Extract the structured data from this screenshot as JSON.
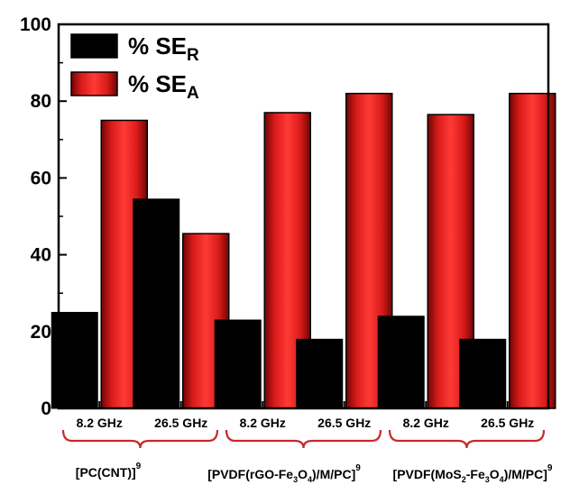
{
  "chart_data": {
    "type": "bar",
    "categories": [
      "8.2 GHz",
      "26.5 GHz",
      "8.2 GHz",
      "26.5 GHz",
      "8.2 GHz",
      "26.5 GHz"
    ],
    "groups": [
      {
        "label": {
          "main": "[PC(CNT)]",
          "sup": "9"
        },
        "frequencies": [
          "8.2 GHz",
          "26.5 GHz"
        ]
      },
      {
        "label": {
          "parts": [
            "[PVDF(rGO-Fe",
            "3",
            "O",
            "4",
            ")/M/PC]"
          ],
          "sup": "9"
        },
        "frequencies": [
          "8.2 GHz",
          "26.5 GHz"
        ]
      },
      {
        "label": {
          "parts": [
            "[PVDF(MoS",
            "2",
            "-Fe",
            "3",
            "O",
            "4",
            ")/M/PC]"
          ],
          "sup": "9"
        },
        "frequencies": [
          "8.2 GHz",
          "26.5 GHz"
        ]
      }
    ],
    "series": [
      {
        "name": {
          "prefix": "% SE",
          "sub": "R"
        },
        "color": "#000000",
        "values": [
          25,
          54.5,
          23,
          18,
          24,
          18
        ]
      },
      {
        "name": {
          "prefix": "% SE",
          "sub": "A"
        },
        "color": "#e8201f",
        "values": [
          75,
          45.5,
          77,
          82,
          76.5,
          82
        ]
      }
    ],
    "ylim": [
      0,
      100
    ],
    "yticks": [
      0,
      20,
      40,
      60,
      80,
      100
    ],
    "legend_position": "top-left",
    "grid": false
  }
}
